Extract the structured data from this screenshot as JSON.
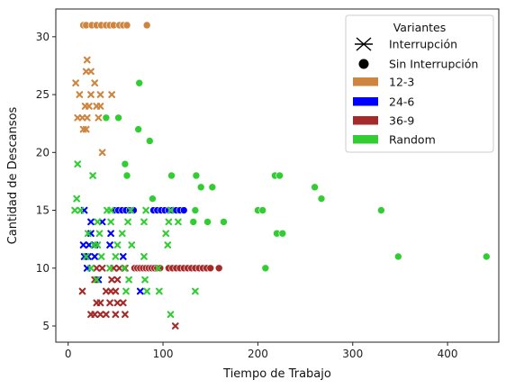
{
  "chart_data": {
    "type": "scatter",
    "title": "",
    "xlabel": "Tiempo de Trabajo",
    "ylabel": "Cantidad de Descansos",
    "xlim": [
      -13,
      454
    ],
    "ylim": [
      3.6,
      32.4
    ],
    "xticks": [
      0,
      100,
      200,
      300,
      400
    ],
    "yticks": [
      5,
      10,
      15,
      20,
      25,
      30
    ],
    "grid": false,
    "legend": {
      "title": "Variantes",
      "placement": "top-right",
      "marker_entries": [
        {
          "label": "Interrupción",
          "marker": "x"
        },
        {
          "label": "Sin Interrupción",
          "marker": "o"
        }
      ],
      "color_entries": [
        {
          "label": "12-3",
          "color": "#cd853f"
        },
        {
          "label": "24-6",
          "color": "#0000ff"
        },
        {
          "label": "36-9",
          "color": "#a52a2a"
        },
        {
          "label": "Random",
          "color": "#32cd32"
        }
      ]
    },
    "series": [
      {
        "name": "12-3",
        "color": "#cd853f",
        "points": [
          {
            "x": 16,
            "y": 31,
            "m": "o"
          },
          {
            "x": 19,
            "y": 31,
            "m": "o"
          },
          {
            "x": 25,
            "y": 31,
            "m": "o"
          },
          {
            "x": 30,
            "y": 31,
            "m": "o"
          },
          {
            "x": 35,
            "y": 31,
            "m": "o"
          },
          {
            "x": 40,
            "y": 31,
            "m": "o"
          },
          {
            "x": 44,
            "y": 31,
            "m": "o"
          },
          {
            "x": 48,
            "y": 31,
            "m": "o"
          },
          {
            "x": 54,
            "y": 31,
            "m": "o"
          },
          {
            "x": 58,
            "y": 31,
            "m": "o"
          },
          {
            "x": 62,
            "y": 31,
            "m": "o"
          },
          {
            "x": 83,
            "y": 31,
            "m": "o"
          },
          {
            "x": 20,
            "y": 28,
            "m": "x"
          },
          {
            "x": 19,
            "y": 27,
            "m": "x"
          },
          {
            "x": 24,
            "y": 27,
            "m": "x"
          },
          {
            "x": 8,
            "y": 26,
            "m": "x"
          },
          {
            "x": 28,
            "y": 26,
            "m": "x"
          },
          {
            "x": 12,
            "y": 25,
            "m": "x"
          },
          {
            "x": 24,
            "y": 25,
            "m": "x"
          },
          {
            "x": 34,
            "y": 25,
            "m": "x"
          },
          {
            "x": 46,
            "y": 25,
            "m": "x"
          },
          {
            "x": 18,
            "y": 24,
            "m": "x"
          },
          {
            "x": 22,
            "y": 24,
            "m": "x"
          },
          {
            "x": 30,
            "y": 24,
            "m": "x"
          },
          {
            "x": 34,
            "y": 24,
            "m": "x"
          },
          {
            "x": 10,
            "y": 23,
            "m": "x"
          },
          {
            "x": 15,
            "y": 23,
            "m": "x"
          },
          {
            "x": 20,
            "y": 23,
            "m": "x"
          },
          {
            "x": 32,
            "y": 23,
            "m": "x"
          },
          {
            "x": 16,
            "y": 22,
            "m": "x"
          },
          {
            "x": 19,
            "y": 22,
            "m": "x"
          },
          {
            "x": 36,
            "y": 20,
            "m": "x"
          }
        ]
      },
      {
        "name": "24-6",
        "color": "#0000ff",
        "points": [
          {
            "x": 49,
            "y": 15,
            "m": "o"
          },
          {
            "x": 53,
            "y": 15,
            "m": "o"
          },
          {
            "x": 57,
            "y": 15,
            "m": "o"
          },
          {
            "x": 61,
            "y": 15,
            "m": "o"
          },
          {
            "x": 65,
            "y": 15,
            "m": "o"
          },
          {
            "x": 69,
            "y": 15,
            "m": "o"
          },
          {
            "x": 90,
            "y": 15,
            "m": "o"
          },
          {
            "x": 94,
            "y": 15,
            "m": "o"
          },
          {
            "x": 98,
            "y": 15,
            "m": "o"
          },
          {
            "x": 102,
            "y": 15,
            "m": "o"
          },
          {
            "x": 106,
            "y": 15,
            "m": "o"
          },
          {
            "x": 110,
            "y": 15,
            "m": "o"
          },
          {
            "x": 114,
            "y": 15,
            "m": "o"
          },
          {
            "x": 118,
            "y": 15,
            "m": "o"
          },
          {
            "x": 122,
            "y": 15,
            "m": "o"
          },
          {
            "x": 17,
            "y": 15,
            "m": "x"
          },
          {
            "x": 24,
            "y": 14,
            "m": "x"
          },
          {
            "x": 36,
            "y": 14,
            "m": "x"
          },
          {
            "x": 24,
            "y": 13,
            "m": "x"
          },
          {
            "x": 45,
            "y": 13,
            "m": "x"
          },
          {
            "x": 16,
            "y": 12,
            "m": "x"
          },
          {
            "x": 22,
            "y": 12,
            "m": "x"
          },
          {
            "x": 28,
            "y": 12,
            "m": "x"
          },
          {
            "x": 44,
            "y": 12,
            "m": "x"
          },
          {
            "x": 17,
            "y": 11,
            "m": "x"
          },
          {
            "x": 21,
            "y": 11,
            "m": "x"
          },
          {
            "x": 28,
            "y": 11,
            "m": "x"
          },
          {
            "x": 58,
            "y": 11,
            "m": "x"
          },
          {
            "x": 20,
            "y": 10,
            "m": "x"
          },
          {
            "x": 32,
            "y": 9,
            "m": "x"
          },
          {
            "x": 76,
            "y": 8,
            "m": "x"
          }
        ]
      },
      {
        "name": "36-9",
        "color": "#a52a2a",
        "points": [
          {
            "x": 70,
            "y": 10,
            "m": "o"
          },
          {
            "x": 73,
            "y": 10,
            "m": "o"
          },
          {
            "x": 76,
            "y": 10,
            "m": "o"
          },
          {
            "x": 79,
            "y": 10,
            "m": "o"
          },
          {
            "x": 82,
            "y": 10,
            "m": "o"
          },
          {
            "x": 85,
            "y": 10,
            "m": "o"
          },
          {
            "x": 88,
            "y": 10,
            "m": "o"
          },
          {
            "x": 91,
            "y": 10,
            "m": "o"
          },
          {
            "x": 94,
            "y": 10,
            "m": "o"
          },
          {
            "x": 97,
            "y": 10,
            "m": "o"
          },
          {
            "x": 106,
            "y": 10,
            "m": "o"
          },
          {
            "x": 110,
            "y": 10,
            "m": "o"
          },
          {
            "x": 114,
            "y": 10,
            "m": "o"
          },
          {
            "x": 118,
            "y": 10,
            "m": "o"
          },
          {
            "x": 122,
            "y": 10,
            "m": "o"
          },
          {
            "x": 126,
            "y": 10,
            "m": "o"
          },
          {
            "x": 130,
            "y": 10,
            "m": "o"
          },
          {
            "x": 134,
            "y": 10,
            "m": "o"
          },
          {
            "x": 138,
            "y": 10,
            "m": "o"
          },
          {
            "x": 142,
            "y": 10,
            "m": "o"
          },
          {
            "x": 146,
            "y": 10,
            "m": "o"
          },
          {
            "x": 150,
            "y": 10,
            "m": "o"
          },
          {
            "x": 159,
            "y": 10,
            "m": "o"
          },
          {
            "x": 30,
            "y": 10,
            "m": "x"
          },
          {
            "x": 36,
            "y": 10,
            "m": "x"
          },
          {
            "x": 48,
            "y": 10,
            "m": "x"
          },
          {
            "x": 54,
            "y": 10,
            "m": "x"
          },
          {
            "x": 60,
            "y": 10,
            "m": "x"
          },
          {
            "x": 28,
            "y": 9,
            "m": "x"
          },
          {
            "x": 46,
            "y": 9,
            "m": "x"
          },
          {
            "x": 52,
            "y": 9,
            "m": "x"
          },
          {
            "x": 15,
            "y": 8,
            "m": "x"
          },
          {
            "x": 40,
            "y": 8,
            "m": "x"
          },
          {
            "x": 45,
            "y": 8,
            "m": "x"
          },
          {
            "x": 50,
            "y": 8,
            "m": "x"
          },
          {
            "x": 30,
            "y": 7,
            "m": "x"
          },
          {
            "x": 34,
            "y": 7,
            "m": "x"
          },
          {
            "x": 44,
            "y": 7,
            "m": "x"
          },
          {
            "x": 52,
            "y": 7,
            "m": "x"
          },
          {
            "x": 58,
            "y": 7,
            "m": "x"
          },
          {
            "x": 24,
            "y": 6,
            "m": "x"
          },
          {
            "x": 28,
            "y": 6,
            "m": "x"
          },
          {
            "x": 34,
            "y": 6,
            "m": "x"
          },
          {
            "x": 40,
            "y": 6,
            "m": "x"
          },
          {
            "x": 50,
            "y": 6,
            "m": "x"
          },
          {
            "x": 60,
            "y": 6,
            "m": "x"
          },
          {
            "x": 113,
            "y": 5,
            "m": "x"
          }
        ]
      },
      {
        "name": "Random",
        "color": "#32cd32",
        "points": [
          {
            "x": 75,
            "y": 26,
            "m": "o"
          },
          {
            "x": 40,
            "y": 23,
            "m": "o"
          },
          {
            "x": 53,
            "y": 23,
            "m": "o"
          },
          {
            "x": 74,
            "y": 22,
            "m": "o"
          },
          {
            "x": 86,
            "y": 21,
            "m": "o"
          },
          {
            "x": 60,
            "y": 19,
            "m": "o"
          },
          {
            "x": 62,
            "y": 18,
            "m": "o"
          },
          {
            "x": 109,
            "y": 18,
            "m": "o"
          },
          {
            "x": 135,
            "y": 18,
            "m": "o"
          },
          {
            "x": 218,
            "y": 18,
            "m": "o"
          },
          {
            "x": 223,
            "y": 18,
            "m": "o"
          },
          {
            "x": 140,
            "y": 17,
            "m": "o"
          },
          {
            "x": 152,
            "y": 17,
            "m": "o"
          },
          {
            "x": 260,
            "y": 17,
            "m": "o"
          },
          {
            "x": 89,
            "y": 16,
            "m": "o"
          },
          {
            "x": 267,
            "y": 16,
            "m": "o"
          },
          {
            "x": 134,
            "y": 15,
            "m": "o"
          },
          {
            "x": 200,
            "y": 15,
            "m": "o"
          },
          {
            "x": 205,
            "y": 15,
            "m": "o"
          },
          {
            "x": 330,
            "y": 15,
            "m": "o"
          },
          {
            "x": 132,
            "y": 14,
            "m": "o"
          },
          {
            "x": 147,
            "y": 14,
            "m": "o"
          },
          {
            "x": 164,
            "y": 14,
            "m": "o"
          },
          {
            "x": 220,
            "y": 13,
            "m": "o"
          },
          {
            "x": 226,
            "y": 13,
            "m": "o"
          },
          {
            "x": 348,
            "y": 11,
            "m": "o"
          },
          {
            "x": 441,
            "y": 11,
            "m": "o"
          },
          {
            "x": 208,
            "y": 10,
            "m": "o"
          },
          {
            "x": 10,
            "y": 19,
            "m": "x"
          },
          {
            "x": 26,
            "y": 18,
            "m": "x"
          },
          {
            "x": 9,
            "y": 16,
            "m": "x"
          },
          {
            "x": 7,
            "y": 15,
            "m": "x"
          },
          {
            "x": 13,
            "y": 15,
            "m": "x"
          },
          {
            "x": 41,
            "y": 15,
            "m": "x"
          },
          {
            "x": 45,
            "y": 15,
            "m": "x"
          },
          {
            "x": 66,
            "y": 15,
            "m": "x"
          },
          {
            "x": 82,
            "y": 15,
            "m": "x"
          },
          {
            "x": 108,
            "y": 15,
            "m": "x"
          },
          {
            "x": 31,
            "y": 14,
            "m": "x"
          },
          {
            "x": 45,
            "y": 14,
            "m": "x"
          },
          {
            "x": 63,
            "y": 14,
            "m": "x"
          },
          {
            "x": 80,
            "y": 14,
            "m": "x"
          },
          {
            "x": 106,
            "y": 14,
            "m": "x"
          },
          {
            "x": 116,
            "y": 14,
            "m": "x"
          },
          {
            "x": 21,
            "y": 13,
            "m": "x"
          },
          {
            "x": 33,
            "y": 13,
            "m": "x"
          },
          {
            "x": 57,
            "y": 13,
            "m": "x"
          },
          {
            "x": 103,
            "y": 13,
            "m": "x"
          },
          {
            "x": 27,
            "y": 12,
            "m": "x"
          },
          {
            "x": 31,
            "y": 12,
            "m": "x"
          },
          {
            "x": 52,
            "y": 12,
            "m": "x"
          },
          {
            "x": 67,
            "y": 12,
            "m": "x"
          },
          {
            "x": 105,
            "y": 12,
            "m": "x"
          },
          {
            "x": 19,
            "y": 11,
            "m": "x"
          },
          {
            "x": 35,
            "y": 11,
            "m": "x"
          },
          {
            "x": 50,
            "y": 11,
            "m": "x"
          },
          {
            "x": 80,
            "y": 11,
            "m": "x"
          },
          {
            "x": 24,
            "y": 10,
            "m": "x"
          },
          {
            "x": 44,
            "y": 10,
            "m": "x"
          },
          {
            "x": 59,
            "y": 10,
            "m": "x"
          },
          {
            "x": 95,
            "y": 10,
            "m": "x"
          },
          {
            "x": 30,
            "y": 9,
            "m": "x"
          },
          {
            "x": 64,
            "y": 9,
            "m": "x"
          },
          {
            "x": 81,
            "y": 9,
            "m": "x"
          },
          {
            "x": 61,
            "y": 8,
            "m": "x"
          },
          {
            "x": 83,
            "y": 8,
            "m": "x"
          },
          {
            "x": 96,
            "y": 8,
            "m": "x"
          },
          {
            "x": 134,
            "y": 8,
            "m": "x"
          },
          {
            "x": 108,
            "y": 6,
            "m": "x"
          }
        ]
      }
    ]
  }
}
